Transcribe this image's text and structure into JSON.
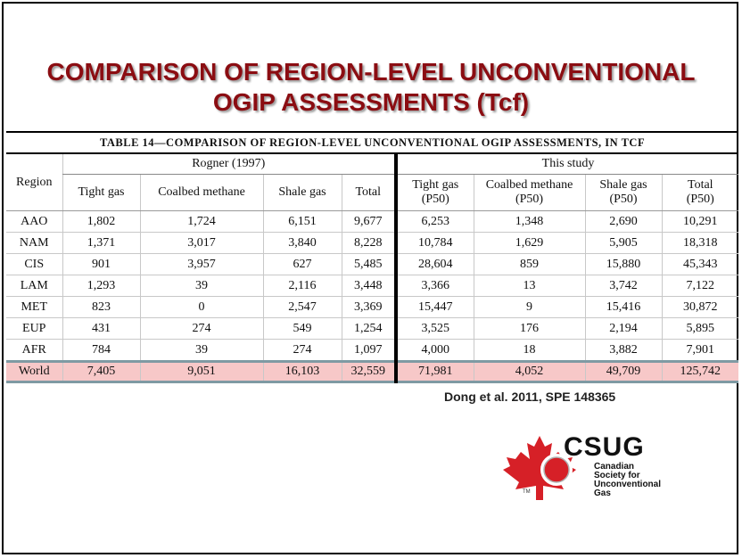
{
  "slide": {
    "title_line1": "COMPARISON OF REGION-LEVEL UNCONVENTIONAL",
    "title_line2": "OGIP ASSESSMENTS (Tcf)"
  },
  "table": {
    "caption": "TABLE 14—COMPARISON OF REGION-LEVEL  UNCONVENTIONAL OGIP ASSESSMENTS, IN TCF",
    "region_header": "Region",
    "group1": "Rogner (1997)",
    "group2": "This study",
    "g1_cols": [
      "Tight gas",
      "Coalbed methane",
      "Shale gas",
      "Total"
    ],
    "g2_cols": [
      {
        "l1": "Tight gas",
        "l2": "(P50)"
      },
      {
        "l1": "Coalbed methane",
        "l2": "(P50)"
      },
      {
        "l1": "Shale gas",
        "l2": "(P50)"
      },
      {
        "l1": "Total",
        "l2": "(P50)"
      }
    ],
    "rows": [
      {
        "region": "AAO",
        "v": [
          "1,802",
          "1,724",
          "6,151",
          "9,677",
          "6,253",
          "1,348",
          "2,690",
          "10,291"
        ]
      },
      {
        "region": "NAM",
        "v": [
          "1,371",
          "3,017",
          "3,840",
          "8,228",
          "10,784",
          "1,629",
          "5,905",
          "18,318"
        ]
      },
      {
        "region": "CIS",
        "v": [
          "901",
          "3,957",
          "627",
          "5,485",
          "28,604",
          "859",
          "15,880",
          "45,343"
        ]
      },
      {
        "region": "LAM",
        "v": [
          "1,293",
          "39",
          "2,116",
          "3,448",
          "3,366",
          "13",
          "3,742",
          "7,122"
        ]
      },
      {
        "region": "MET",
        "v": [
          "823",
          "0",
          "2,547",
          "3,369",
          "15,447",
          "9",
          "15,416",
          "30,872"
        ]
      },
      {
        "region": "EUP",
        "v": [
          "431",
          "274",
          "549",
          "1,254",
          "3,525",
          "176",
          "2,194",
          "5,895"
        ]
      },
      {
        "region": "AFR",
        "v": [
          "784",
          "39",
          "274",
          "1,097",
          "4,000",
          "18",
          "3,882",
          "7,901"
        ]
      },
      {
        "region": "World",
        "v": [
          "7,405",
          "9,051",
          "16,103",
          "32,559",
          "71,981",
          "4,052",
          "49,709",
          "125,742"
        ]
      }
    ]
  },
  "citation": "Dong et al. 2011, SPE 148365",
  "logo": {
    "name": "CSUG",
    "tm": "TM",
    "lines": [
      "Canadian",
      "Society for",
      "Unconventional",
      "Gas"
    ]
  },
  "colors": {
    "title": "#8b0d12",
    "world_row": "#f7c8c8",
    "logo_red": "#d62027"
  }
}
